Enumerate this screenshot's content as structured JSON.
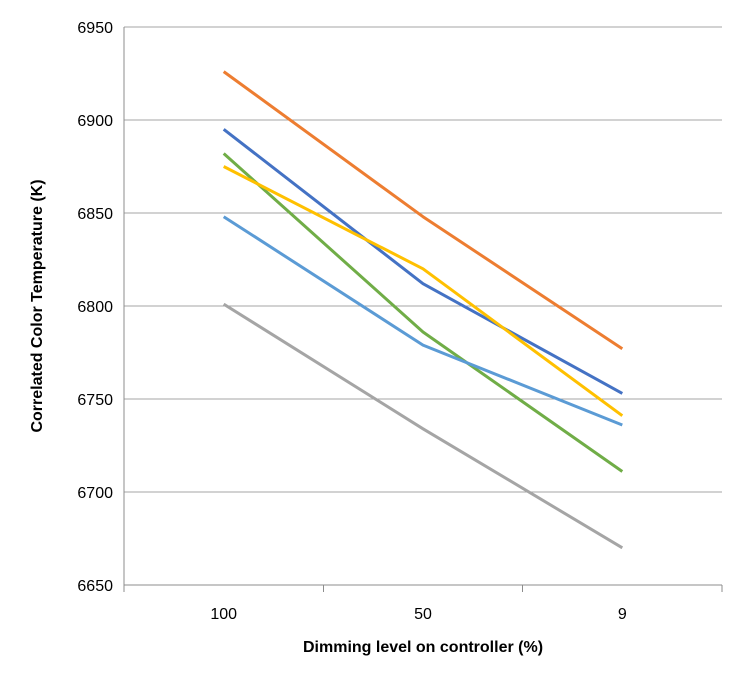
{
  "chart_data": {
    "type": "line",
    "title": "",
    "xlabel": "Dimming level on controller (%)",
    "ylabel": "Correlated Color Temperature (K)",
    "categories": [
      "100",
      "50",
      "9"
    ],
    "ylim": [
      6650,
      6950
    ],
    "yticks": [
      "6650",
      "6700",
      "6750",
      "6800",
      "6850",
      "6900",
      "6950"
    ],
    "grid": "horizontal",
    "legend": "none",
    "series": [
      {
        "color": "#ED7D31",
        "values": [
          6926,
          6848,
          6777
        ]
      },
      {
        "color": "#4472C4",
        "values": [
          6895,
          6812,
          6753
        ]
      },
      {
        "color": "#70AD47",
        "values": [
          6882,
          6786,
          6711
        ]
      },
      {
        "color": "#FFC000",
        "values": [
          6875,
          6820,
          6741
        ]
      },
      {
        "color": "#5B9BD5",
        "values": [
          6848,
          6779,
          6736
        ]
      },
      {
        "color": "#A5A5A5",
        "values": [
          6801,
          6734,
          6670
        ]
      }
    ]
  }
}
